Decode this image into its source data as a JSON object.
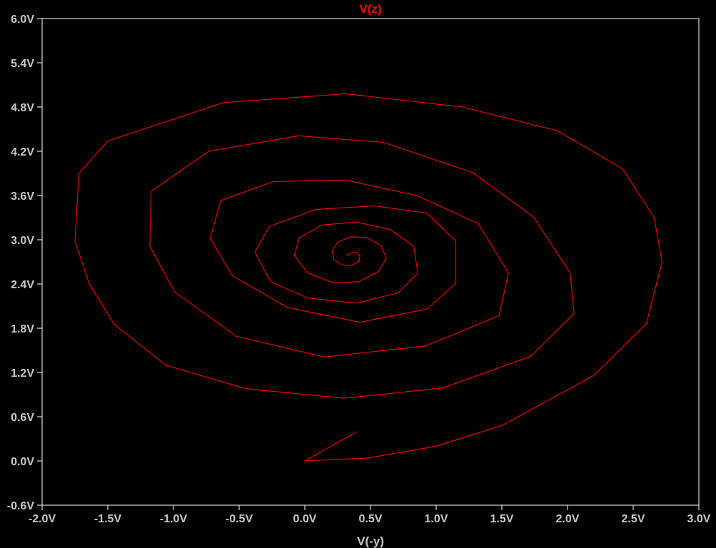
{
  "chart_data": {
    "type": "line",
    "title": "V(z)",
    "xlabel": "V(-y)",
    "ylabel": "",
    "xlim": [
      -2.0,
      3.0
    ],
    "ylim": [
      -0.6,
      6.0
    ],
    "grid": false,
    "xticks": [
      "-2.0V",
      "-1.5V",
      "-1.0V",
      "-0.5V",
      "0.0V",
      "0.5V",
      "1.0V",
      "1.5V",
      "2.0V",
      "2.5V",
      "3.0V"
    ],
    "yticks": [
      "6.0V",
      "5.4V",
      "4.8V",
      "4.2V",
      "3.6V",
      "3.0V",
      "2.4V",
      "1.8V",
      "1.2V",
      "0.6V",
      "0.0V",
      "-0.6V"
    ],
    "series": [
      {
        "name": "V(z)",
        "color": "#ff0000",
        "x": [
          0.4,
          0.0,
          0.48,
          1.0,
          1.5,
          2.2,
          2.6,
          2.72,
          2.66,
          2.42,
          1.92,
          1.2,
          0.31,
          -0.62,
          -1.5,
          -1.72,
          -1.75,
          -1.64,
          -1.45,
          -1.06,
          -0.45,
          0.3,
          1.05,
          1.72,
          2.05,
          2.02,
          1.74,
          1.28,
          0.6,
          -0.05,
          -0.73,
          -1.17,
          -1.18,
          -0.99,
          -0.52,
          0.15,
          0.92,
          1.48,
          1.55,
          1.32,
          0.85,
          0.31,
          -0.24,
          -0.64,
          -0.72,
          -0.55,
          -0.13,
          0.42,
          0.93,
          1.15,
          1.15,
          0.93,
          0.53,
          0.08,
          -0.27,
          -0.38,
          -0.26,
          0.02,
          0.39,
          0.71,
          0.86,
          0.83,
          0.65,
          0.39,
          0.13,
          -0.04,
          -0.08,
          0.02,
          0.21,
          0.41,
          0.56,
          0.62,
          0.58,
          0.47,
          0.35,
          0.25,
          0.21,
          0.22,
          0.28,
          0.35,
          0.41,
          0.42,
          0.39,
          0.35,
          0.32,
          0.33
        ],
        "y": [
          0.4,
          0.0,
          0.04,
          0.2,
          0.48,
          1.16,
          1.86,
          2.7,
          3.3,
          3.96,
          4.48,
          4.8,
          4.98,
          4.86,
          4.34,
          3.9,
          2.98,
          2.4,
          1.85,
          1.3,
          0.98,
          0.85,
          0.99,
          1.42,
          2.0,
          2.55,
          3.31,
          3.91,
          4.32,
          4.41,
          4.2,
          3.66,
          2.91,
          2.29,
          1.69,
          1.41,
          1.56,
          1.97,
          2.55,
          3.22,
          3.6,
          3.81,
          3.79,
          3.53,
          3.02,
          2.51,
          2.08,
          1.88,
          2.06,
          2.41,
          2.98,
          3.36,
          3.46,
          3.41,
          3.18,
          2.83,
          2.43,
          2.21,
          2.14,
          2.28,
          2.55,
          2.91,
          3.14,
          3.24,
          3.2,
          3.03,
          2.79,
          2.55,
          2.42,
          2.43,
          2.57,
          2.75,
          2.92,
          3.03,
          3.04,
          2.97,
          2.85,
          2.73,
          2.66,
          2.65,
          2.7,
          2.78,
          2.83,
          2.82,
          2.79,
          2.78
        ]
      }
    ]
  }
}
